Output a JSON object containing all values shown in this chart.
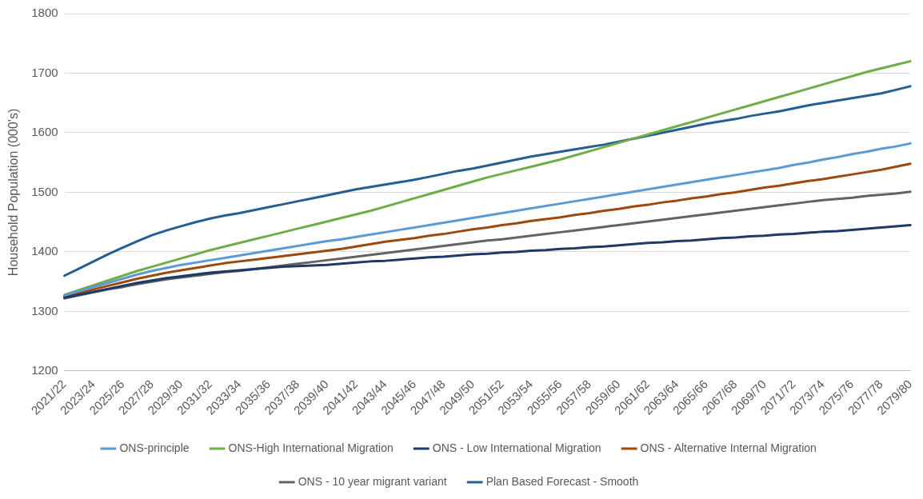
{
  "chart_data": {
    "type": "line",
    "ylabel": "Household Population (000's)",
    "categories": [
      "2021/22",
      null,
      "2023/24",
      null,
      "2025/26",
      null,
      "2027/28",
      null,
      "2029/30",
      null,
      "2031/32",
      null,
      "2033/34",
      null,
      "2035/36",
      null,
      "2037/38",
      null,
      "2039/40",
      null,
      "2041/42",
      null,
      "2043/44",
      null,
      "2045/46",
      null,
      "2047/48",
      null,
      "2049/50",
      null,
      "2051/52",
      null,
      "2053/54",
      null,
      "2055/56",
      null,
      "2057/58",
      null,
      "2059/60",
      null,
      "2061/62",
      null,
      "2063/64",
      null,
      "2065/66",
      null,
      "2067/68",
      null,
      "2069/70",
      null,
      "2071/72",
      null,
      "2073/74",
      null,
      "2075/76",
      null,
      "2077/78",
      null,
      "2079/80"
    ],
    "series": [
      {
        "name": "ONS-principle",
        "color": "#5b9bd5",
        "values": [
          1327,
          1334,
          1341,
          1348,
          1355,
          1362,
          1368,
          1373,
          1378,
          1382,
          1386,
          1390,
          1394,
          1398,
          1402,
          1406,
          1410,
          1414,
          1418,
          1421,
          1425,
          1429,
          1433,
          1437,
          1441,
          1445,
          1449,
          1453,
          1457,
          1461,
          1465,
          1469,
          1473,
          1477,
          1481,
          1485,
          1489,
          1493,
          1497,
          1501,
          1505,
          1509,
          1513,
          1517,
          1521,
          1525,
          1529,
          1533,
          1537,
          1541,
          1546,
          1550,
          1555,
          1559,
          1564,
          1568,
          1573,
          1577,
          1582
        ]
      },
      {
        "name": "ONS-High International Migration",
        "color": "#70ad47",
        "values": [
          1328,
          1336,
          1344,
          1352,
          1360,
          1368,
          1375,
          1382,
          1389,
          1396,
          1403,
          1409,
          1415,
          1421,
          1427,
          1433,
          1439,
          1445,
          1451,
          1457,
          1463,
          1469,
          1476,
          1483,
          1490,
          1497,
          1504,
          1511,
          1518,
          1525,
          1531,
          1537,
          1543,
          1549,
          1555,
          1562,
          1569,
          1576,
          1583,
          1590,
          1597,
          1604,
          1611,
          1618,
          1625,
          1632,
          1639,
          1646,
          1653,
          1660,
          1667,
          1674,
          1681,
          1688,
          1695,
          1702,
          1708,
          1714,
          1720
        ]
      },
      {
        "name": "ONS - Low International Migration",
        "color": "#203864",
        "values": [
          1323,
          1328,
          1333,
          1338,
          1343,
          1348,
          1352,
          1356,
          1359,
          1362,
          1365,
          1367,
          1369,
          1371,
          1373,
          1375,
          1376,
          1377,
          1378,
          1380,
          1382,
          1384,
          1385,
          1387,
          1389,
          1391,
          1392,
          1394,
          1396,
          1397,
          1399,
          1400,
          1402,
          1403,
          1405,
          1406,
          1408,
          1409,
          1411,
          1413,
          1415,
          1416,
          1418,
          1419,
          1421,
          1423,
          1424,
          1426,
          1427,
          1429,
          1430,
          1432,
          1434,
          1435,
          1437,
          1439,
          1441,
          1443,
          1445
        ]
      },
      {
        "name": "ONS - Alternative Internal Migration",
        "color": "#9e480e",
        "values": [
          1325,
          1331,
          1337,
          1343,
          1349,
          1355,
          1360,
          1365,
          1369,
          1373,
          1377,
          1381,
          1384,
          1387,
          1390,
          1393,
          1396,
          1399,
          1402,
          1405,
          1409,
          1413,
          1417,
          1420,
          1423,
          1427,
          1430,
          1434,
          1438,
          1441,
          1445,
          1448,
          1452,
          1455,
          1458,
          1462,
          1465,
          1469,
          1472,
          1476,
          1479,
          1483,
          1486,
          1490,
          1493,
          1497,
          1500,
          1504,
          1508,
          1511,
          1515,
          1519,
          1522,
          1526,
          1530,
          1534,
          1538,
          1543,
          1548
        ]
      },
      {
        "name": "ONS - 10 year migrant variant",
        "color": "#636363",
        "values": [
          1322,
          1327,
          1332,
          1337,
          1341,
          1346,
          1350,
          1354,
          1357,
          1360,
          1363,
          1366,
          1368,
          1371,
          1374,
          1377,
          1380,
          1383,
          1386,
          1389,
          1392,
          1395,
          1398,
          1401,
          1404,
          1407,
          1410,
          1413,
          1416,
          1419,
          1421,
          1424,
          1427,
          1430,
          1433,
          1436,
          1439,
          1442,
          1445,
          1448,
          1451,
          1454,
          1457,
          1460,
          1463,
          1466,
          1469,
          1472,
          1475,
          1478,
          1481,
          1484,
          1487,
          1489,
          1491,
          1494,
          1496,
          1498,
          1501
        ]
      },
      {
        "name": "Plan Based Forecast - Smooth",
        "color": "#255e91",
        "values": [
          1360,
          1372,
          1384,
          1396,
          1407,
          1418,
          1428,
          1436,
          1443,
          1450,
          1456,
          1461,
          1465,
          1470,
          1475,
          1480,
          1485,
          1490,
          1495,
          1500,
          1505,
          1509,
          1513,
          1517,
          1521,
          1526,
          1531,
          1536,
          1540,
          1545,
          1550,
          1555,
          1560,
          1564,
          1568,
          1572,
          1576,
          1580,
          1585,
          1590,
          1595,
          1600,
          1605,
          1610,
          1615,
          1619,
          1623,
          1628,
          1632,
          1636,
          1641,
          1646,
          1650,
          1654,
          1658,
          1662,
          1666,
          1672,
          1678
        ]
      }
    ],
    "ylim": [
      1200,
      1800
    ],
    "yticks": [
      1200,
      1300,
      1400,
      1500,
      1600,
      1700,
      1800
    ],
    "grid": "y",
    "legend": "bottom",
    "marker": "none",
    "line_style": "solid"
  }
}
